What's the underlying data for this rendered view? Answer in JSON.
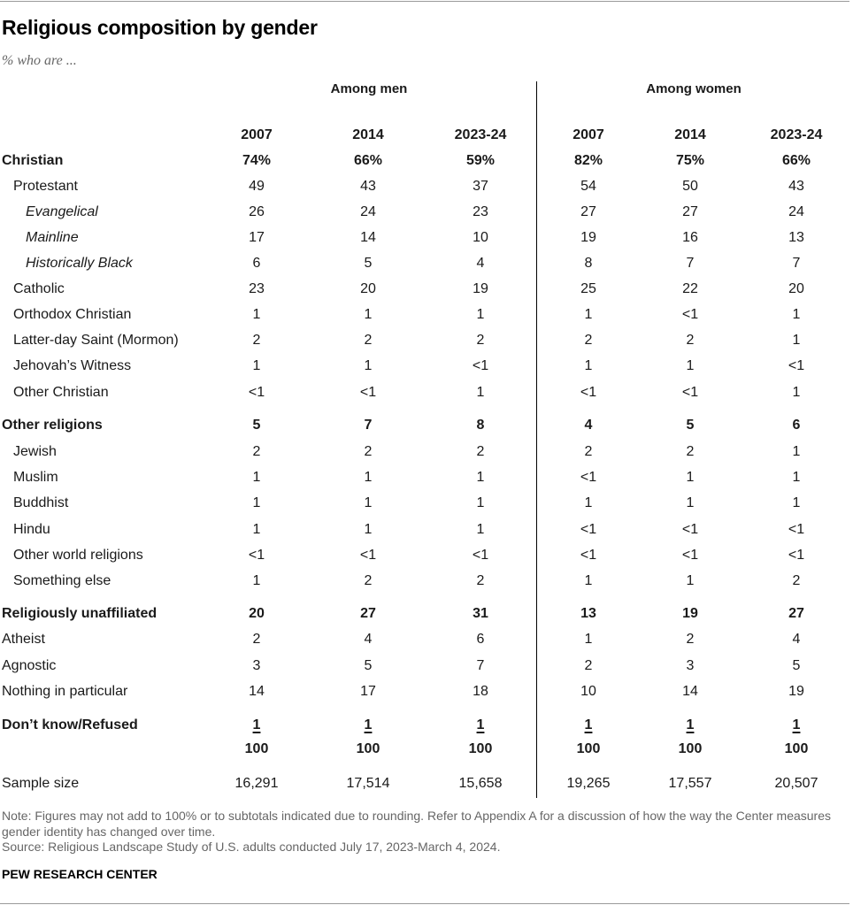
{
  "title": "Religious composition by gender",
  "subtitle": "% who are ...",
  "groups": {
    "men": "Among men",
    "women": "Among women"
  },
  "columns": [
    "2007",
    "2014",
    "2023-24",
    "2007",
    "2014",
    "2023-24"
  ],
  "chart_data": {
    "type": "table",
    "title": "Religious composition by gender",
    "subtitle": "% who are ...",
    "column_groups": [
      {
        "name": "Among men",
        "columns": [
          "2007",
          "2014",
          "2023-24"
        ]
      },
      {
        "name": "Among women",
        "columns": [
          "2007",
          "2014",
          "2023-24"
        ]
      }
    ],
    "rows": [
      {
        "label": "Christian",
        "level": 0,
        "bold": true,
        "values": [
          "74%",
          "66%",
          "59%",
          "82%",
          "75%",
          "66%"
        ]
      },
      {
        "label": "Protestant",
        "level": 1,
        "values": [
          "49",
          "43",
          "37",
          "54",
          "50",
          "43"
        ]
      },
      {
        "label": "Evangelical",
        "level": 2,
        "values": [
          "26",
          "24",
          "23",
          "27",
          "27",
          "24"
        ]
      },
      {
        "label": "Mainline",
        "level": 2,
        "values": [
          "17",
          "14",
          "10",
          "19",
          "16",
          "13"
        ]
      },
      {
        "label": "Historically Black",
        "level": 2,
        "values": [
          "6",
          "5",
          "4",
          "8",
          "7",
          "7"
        ]
      },
      {
        "label": "Catholic",
        "level": 1,
        "values": [
          "23",
          "20",
          "19",
          "25",
          "22",
          "20"
        ]
      },
      {
        "label": "Orthodox Christian",
        "level": 1,
        "values": [
          "1",
          "1",
          "1",
          "1",
          "<1",
          "1"
        ]
      },
      {
        "label": "Latter-day Saint (Mormon)",
        "level": 1,
        "values": [
          "2",
          "2",
          "2",
          "2",
          "2",
          "1"
        ]
      },
      {
        "label": "Jehovah’s Witness",
        "level": 1,
        "values": [
          "1",
          "1",
          "<1",
          "1",
          "1",
          "<1"
        ]
      },
      {
        "label": "Other Christian",
        "level": 1,
        "values": [
          "<1",
          "<1",
          "1",
          "<1",
          "<1",
          "1"
        ]
      },
      {
        "label": "Other religions",
        "level": 0,
        "bold": true,
        "values": [
          "5",
          "7",
          "8",
          "4",
          "5",
          "6"
        ]
      },
      {
        "label": "Jewish",
        "level": 1,
        "values": [
          "2",
          "2",
          "2",
          "2",
          "2",
          "1"
        ]
      },
      {
        "label": "Muslim",
        "level": 1,
        "values": [
          "1",
          "1",
          "1",
          "<1",
          "1",
          "1"
        ]
      },
      {
        "label": "Buddhist",
        "level": 1,
        "values": [
          "1",
          "1",
          "1",
          "1",
          "1",
          "1"
        ]
      },
      {
        "label": "Hindu",
        "level": 1,
        "values": [
          "1",
          "1",
          "1",
          "<1",
          "<1",
          "<1"
        ]
      },
      {
        "label": "Other world religions",
        "level": 1,
        "values": [
          "<1",
          "<1",
          "<1",
          "<1",
          "<1",
          "<1"
        ]
      },
      {
        "label": "Something else",
        "level": 1,
        "values": [
          "1",
          "2",
          "2",
          "1",
          "1",
          "2"
        ]
      },
      {
        "label": "Religiously unaffiliated",
        "level": 0,
        "bold": true,
        "values": [
          "20",
          "27",
          "31",
          "13",
          "19",
          "27"
        ]
      },
      {
        "label": "Atheist",
        "level": 0,
        "values": [
          "2",
          "4",
          "6",
          "1",
          "2",
          "4"
        ]
      },
      {
        "label": "Agnostic",
        "level": 0,
        "values": [
          "3",
          "5",
          "7",
          "2",
          "3",
          "5"
        ]
      },
      {
        "label": "Nothing in particular",
        "level": 0,
        "values": [
          "14",
          "17",
          "18",
          "10",
          "14",
          "19"
        ]
      },
      {
        "label": "Don’t know/Refused",
        "level": 0,
        "bold": true,
        "underline": true,
        "values": [
          "1",
          "1",
          "1",
          "1",
          "1",
          "1"
        ]
      },
      {
        "label": "",
        "level": 0,
        "bold": true,
        "values": [
          "100",
          "100",
          "100",
          "100",
          "100",
          "100"
        ]
      },
      {
        "label": "Sample size",
        "level": 0,
        "values": [
          "16,291",
          "17,514",
          "15,658",
          "19,265",
          "17,557",
          "20,507"
        ]
      }
    ]
  },
  "note": "Note: Figures may not add to 100% or to subtotals indicated due to rounding. Refer to Appendix A for a discussion of how the way the Center measures gender identity has changed over time.",
  "source": "Source: Religious Landscape Study of U.S. adults conducted July 17, 2023-March 4, 2024.",
  "brand": "PEW RESEARCH CENTER"
}
